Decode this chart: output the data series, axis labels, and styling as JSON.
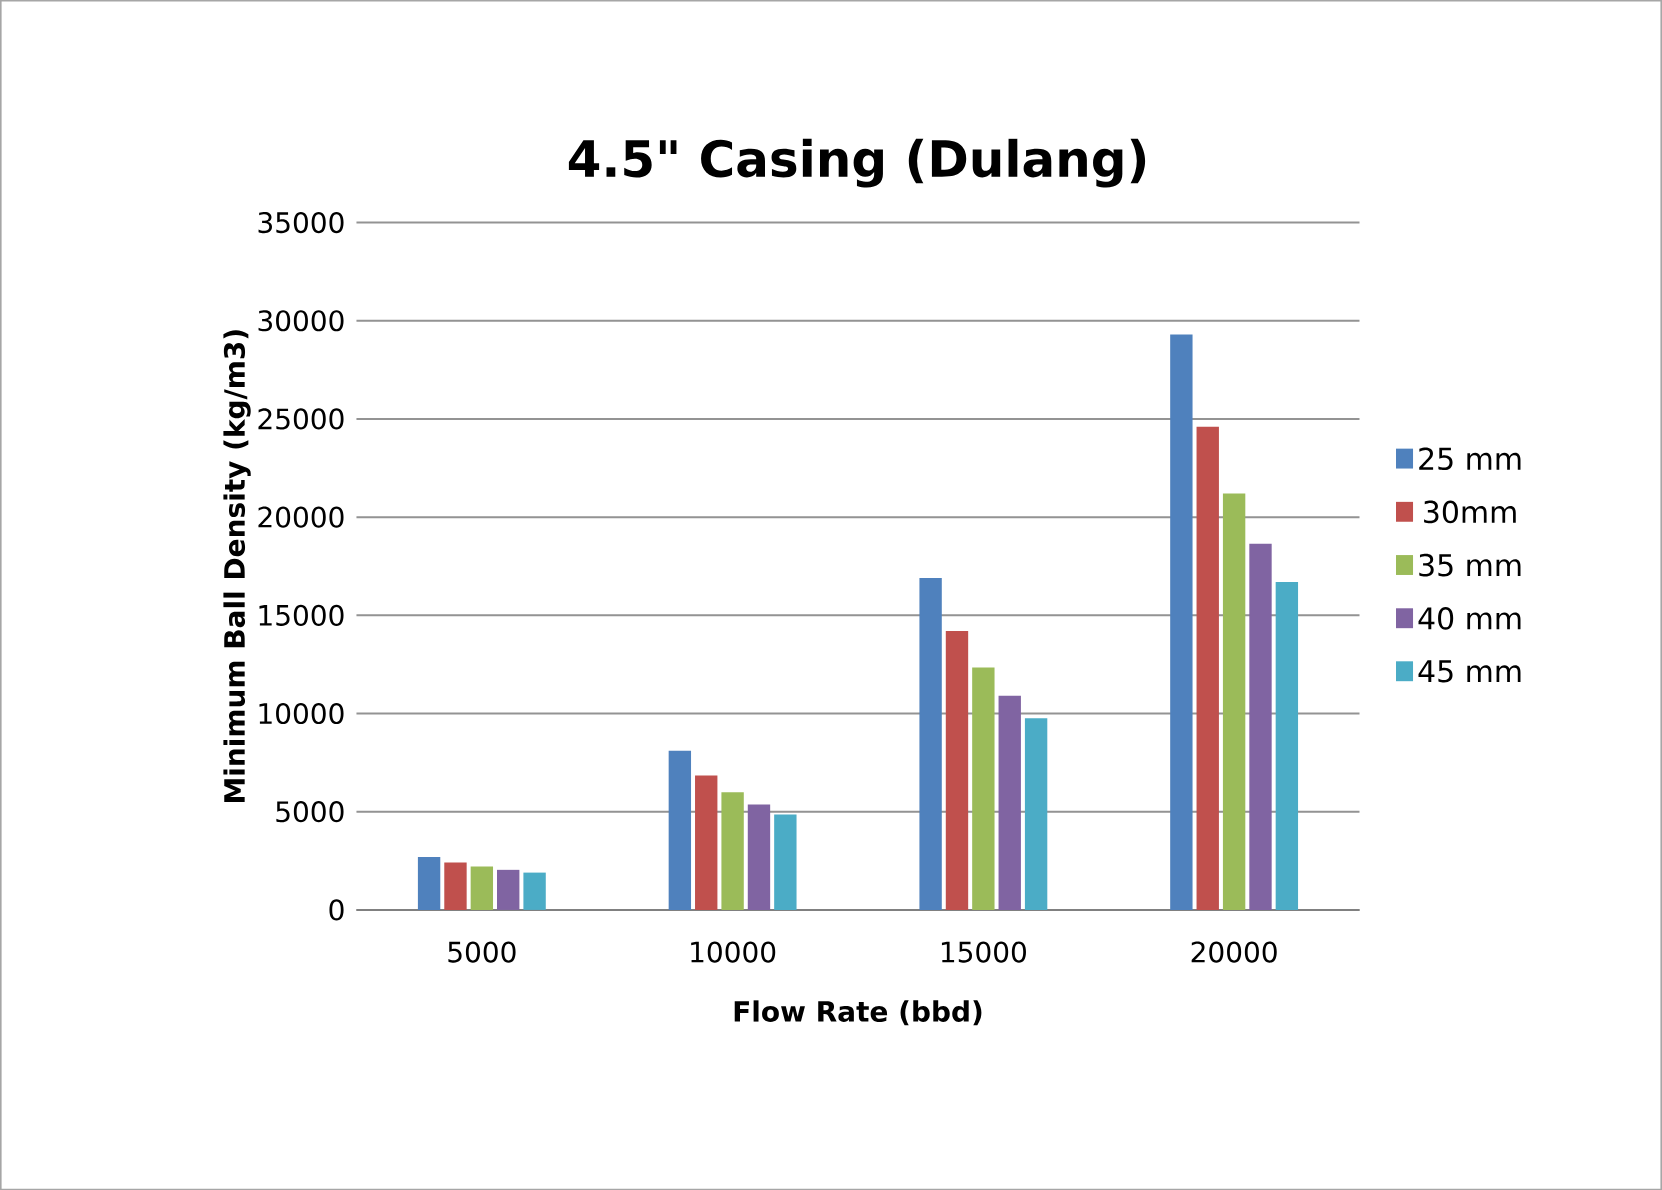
{
  "chart_data": {
    "type": "bar",
    "title": "4.5\" Casing (Dulang)",
    "xlabel": "Flow Rate (bbd)",
    "ylabel": "Minimum Ball Density (kg/m3)",
    "categories": [
      "5000",
      "10000",
      "15000",
      "20000"
    ],
    "series": [
      {
        "name": "25 mm",
        "color": "#4f81bd",
        "values": [
          2690,
          8100,
          16900,
          29300
        ]
      },
      {
        "name": "30mm",
        "color": "#c0504d",
        "values": [
          2410,
          6840,
          14200,
          24600
        ]
      },
      {
        "name": "35 mm",
        "color": "#9bbb59",
        "values": [
          2210,
          5990,
          12350,
          21200
        ]
      },
      {
        "name": "40 mm",
        "color": "#8064a2",
        "values": [
          2040,
          5370,
          10900,
          18640
        ]
      },
      {
        "name": "45 mm",
        "color": "#4bacc6",
        "values": [
          1900,
          4860,
          9760,
          16700
        ]
      }
    ],
    "ylim": [
      0,
      35000
    ],
    "yticks": [
      0,
      5000,
      10000,
      15000,
      20000,
      25000,
      30000,
      35000
    ],
    "grid": "y",
    "legend": "right"
  }
}
